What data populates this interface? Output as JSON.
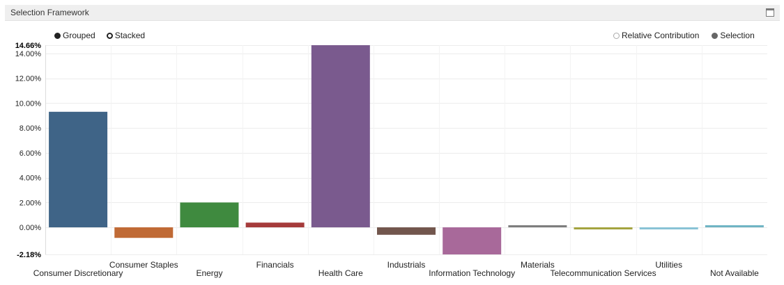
{
  "panel": {
    "title": "Selection Framework",
    "maximize_icon": "maximize-icon"
  },
  "mode_toggle": {
    "options": [
      {
        "label": "Grouped",
        "selected": true
      },
      {
        "label": "Stacked",
        "selected": false
      }
    ]
  },
  "legend": {
    "items": [
      {
        "label": "Relative Contribution",
        "enabled": false
      },
      {
        "label": "Selection",
        "enabled": true
      }
    ]
  },
  "chart_data": {
    "type": "bar",
    "categories": [
      "Consumer Discretionary",
      "Consumer Staples",
      "Energy",
      "Financials",
      "Health Care",
      "Industrials",
      "Information Technology",
      "Materials",
      "Telecommunication Services",
      "Utilities",
      "Not Available"
    ],
    "series": [
      {
        "name": "Selection",
        "values": [
          9.3,
          -0.85,
          2.0,
          0.38,
          14.66,
          -0.6,
          -2.18,
          0.15,
          -0.1,
          -0.05,
          0.05
        ]
      }
    ],
    "bar_colors": [
      "#3f6487",
      "#c06a35",
      "#3f8a3f",
      "#a53b3b",
      "#7a5a8e",
      "#72564d",
      "#a8699a",
      "#7d7d7d",
      "#a3a33e",
      "#88c2d6",
      "#6fb4c4"
    ],
    "ylim": [
      -2.18,
      14.66
    ],
    "yticks": [
      "14.00%",
      "12.00%",
      "10.00%",
      "8.00%",
      "6.00%",
      "4.00%",
      "2.00%",
      "0.00%"
    ],
    "ytick_values": [
      14,
      12,
      10,
      8,
      6,
      4,
      2,
      0
    ],
    "ymax_label": "14.66%",
    "ymin_label": "-2.18%",
    "grid": true
  }
}
